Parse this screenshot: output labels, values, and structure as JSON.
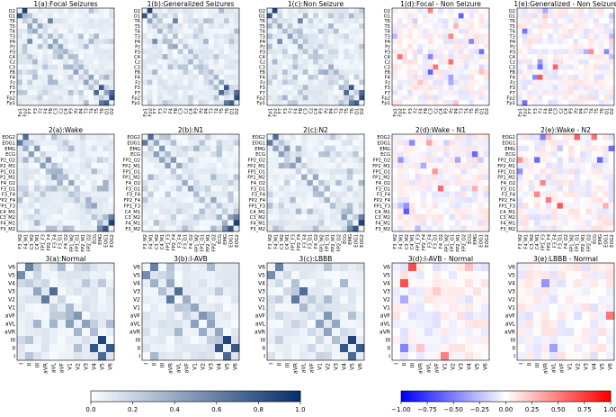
{
  "chart_data": [
    {
      "type": "heatmap",
      "row": "seizure",
      "labels": [
        "Fp1",
        "Fp2",
        "F7",
        "F3",
        "Fz",
        "F4",
        "F8",
        "C3",
        "Cz",
        "C4",
        "P3",
        "Pz",
        "P4",
        "T3",
        "T4",
        "T5",
        "T6",
        "O1",
        "O2"
      ],
      "panels": [
        {
          "title": "1(a):Focal Seizures",
          "scale": "sequential"
        },
        {
          "title": "1(b):Generalized Seizures",
          "scale": "sequential"
        },
        {
          "title": "1(c):Non Seizure",
          "scale": "sequential"
        },
        {
          "title": "1(d):Focal - Non Seizure",
          "scale": "diverging"
        },
        {
          "title": "1(e):Generalized - Non Seizure",
          "scale": "diverging"
        }
      ]
    },
    {
      "type": "heatmap",
      "row": "sleep",
      "labels": [
        "F3_M2",
        "F4_M1",
        "C3_M2",
        "C4_M1",
        "FP1_F3",
        "FP2_F4",
        "F3_F4",
        "F3_O1",
        "F4_O2",
        "FP1_M2",
        "FP1_O1",
        "FP2_M1",
        "FP2_O2",
        "ECG",
        "EMG",
        "EOG1",
        "EOG2"
      ],
      "panels": [
        {
          "title": "2(a):Wake",
          "scale": "sequential"
        },
        {
          "title": "2(b):N1",
          "scale": "sequential"
        },
        {
          "title": "2(c):N2",
          "scale": "sequential"
        },
        {
          "title": "2(d):Wake - N1",
          "scale": "diverging"
        },
        {
          "title": "2(e):Wake - N2",
          "scale": "diverging"
        }
      ]
    },
    {
      "type": "heatmap",
      "row": "ecg",
      "labels": [
        "I",
        "II",
        "III",
        "aVR",
        "aVL",
        "aVF",
        "V1",
        "V2",
        "V3",
        "V4",
        "V5",
        "V6"
      ],
      "panels": [
        {
          "title": "3(a):Normal",
          "scale": "sequential"
        },
        {
          "title": "3(b):I-AVB",
          "scale": "sequential"
        },
        {
          "title": "3(c):LBBB",
          "scale": "sequential"
        },
        {
          "title": "3(d):I-AVB - Normal",
          "scale": "diverging"
        },
        {
          "title": "3(e):LBBB - Normal",
          "scale": "diverging"
        }
      ]
    }
  ],
  "colorbars": {
    "sequential": {
      "range": [
        0,
        1
      ],
      "ticks": [
        "0.0",
        "0.2",
        "0.4",
        "0.6",
        "0.8",
        "1.0"
      ],
      "colors": [
        "#f7fbff",
        "#08306b"
      ]
    },
    "diverging": {
      "range": [
        -1,
        1
      ],
      "ticks": [
        "−1.00",
        "−0.75",
        "−0.50",
        "−0.25",
        "0.00",
        "0.25",
        "0.50",
        "0.75",
        "1.00"
      ],
      "colors": [
        "#0000ff",
        "#ffffff",
        "#ff0000"
      ]
    }
  }
}
